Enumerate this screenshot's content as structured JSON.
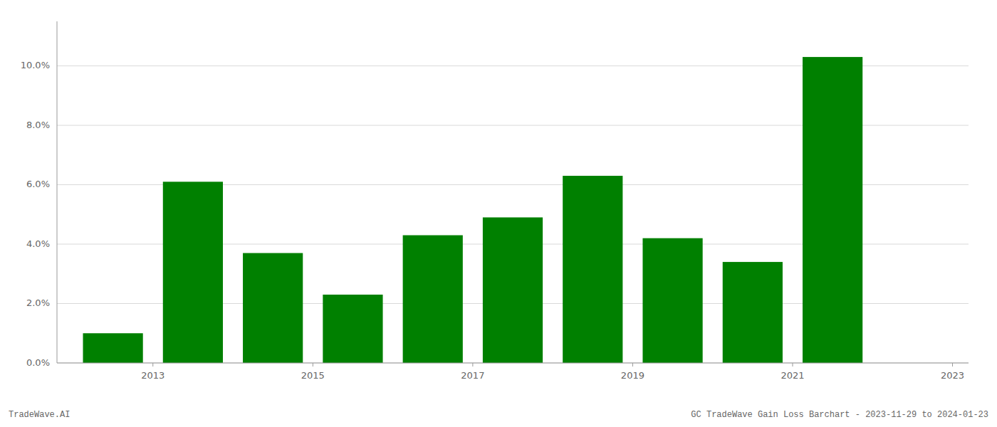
{
  "chart_data": {
    "type": "bar",
    "categories": [
      "2013",
      null,
      "2015",
      null,
      "2017",
      null,
      "2019",
      null,
      "2021",
      null,
      "2023"
    ],
    "values": [
      0.01,
      0.061,
      0.037,
      0.023,
      0.043,
      0.049,
      0.063,
      0.042,
      0.034,
      0.103,
      null
    ],
    "color": "#008000",
    "ylim": [
      0,
      0.115
    ],
    "yticks": [
      {
        "value": 0.0,
        "label": "0.0%"
      },
      {
        "value": 0.02,
        "label": "2.0%"
      },
      {
        "value": 0.04,
        "label": "4.0%"
      },
      {
        "value": 0.06,
        "label": "6.0%"
      },
      {
        "value": 0.08,
        "label": "8.0%"
      },
      {
        "value": 0.1,
        "label": "10.0%"
      }
    ],
    "grid": true,
    "annotations": [
      "TradeWave.AI",
      "GC TradeWave Gain Loss Barchart - 2023-11-29 to 2024-01-23"
    ]
  }
}
